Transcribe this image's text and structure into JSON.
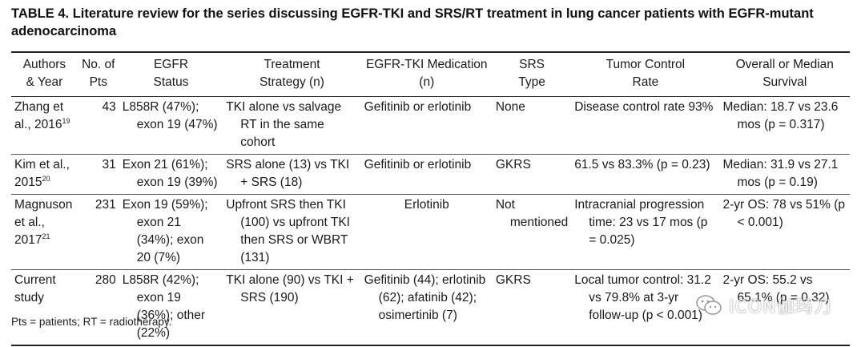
{
  "title": "TABLE 4. Literature review for the series discussing EGFR-TKI and SRS/RT treatment in lung cancer patients with EGFR-mutant adenocarcinoma",
  "headers": [
    [
      "Authors",
      "& Year"
    ],
    [
      "No. of",
      "Pts"
    ],
    [
      "EGFR",
      "Status"
    ],
    [
      "Treatment",
      "Strategy (n)"
    ],
    [
      "EGFR-TKI Medication",
      "(n)"
    ],
    [
      "SRS",
      "Type"
    ],
    [
      "Tumor Control",
      "Rate"
    ],
    [
      "Overall or Median",
      "Survival"
    ]
  ],
  "rows": [
    {
      "author": "Zhang et al., 2016",
      "ref": "19",
      "pts": "43",
      "egfr": "L858R (47%); exon 19 (47%)",
      "strategy": "TKI alone vs salvage RT in the same cohort",
      "medication": "Gefitinib or erlotinib",
      "srs": "None",
      "control": "Disease control rate 93%",
      "survival": "Median: 18.7 vs 23.6 mos (p = 0.317)"
    },
    {
      "author": "Kim et al., 2015",
      "ref": "20",
      "pts": "31",
      "egfr": "Exon 21 (61%); exon 19 (39%)",
      "strategy": "SRS alone (13) vs TKI + SRS (18)",
      "medication": "Gefitinib or erlotinib",
      "srs": "GKRS",
      "control": "61.5 vs 83.3% (p = 0.23)",
      "survival": "Median: 31.9 vs 27.1 mos (p = 0.19)"
    },
    {
      "author": "Magnuson et al., 2017",
      "ref": "21",
      "pts": "231",
      "egfr": "Exon 19 (59%); exon 21 (34%); exon 20 (7%)",
      "strategy": "Upfront SRS then TKI (100) vs upfront TKI then SRS or WBRT (131)",
      "medication": "Erlotinib",
      "srs": "Not mentioned",
      "control": "Intracranial progression time: 23 vs 17 mos (p = 0.025)",
      "survival": "2-yr OS: 78 vs 51% (p < 0.001)"
    },
    {
      "author": "Current study",
      "ref": "",
      "pts": "280",
      "egfr": "L858R (42%); exon 19 (36%); other (22%)",
      "strategy": "TKI alone (90) vs TKI + SRS (190)",
      "medication": "Gefitinib (44); erlotinib (62); afatinib (42); osimertinib (7)",
      "srs": "GKRS",
      "control": "Local tumor control: 31.2 vs 79.8% at 3-yr follow-up (p < 0.001)",
      "survival": "2-yr OS: 55.2 vs 65.1% (p = 0.32)"
    }
  ],
  "footnote": "Pts = patients; RT = radiotherapy.",
  "watermark": {
    "text": "ICON伽玛刀",
    "icon": "wechat-icon"
  }
}
